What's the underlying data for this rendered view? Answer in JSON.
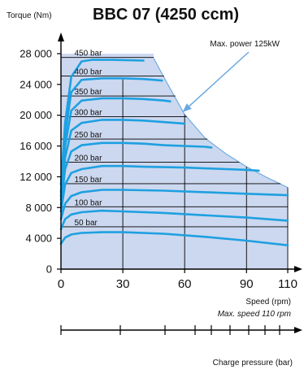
{
  "chart_data": {
    "type": "line",
    "title": "BBC 07 (4250 ccm)",
    "ylabel": "Torque (Nm)",
    "xlabel": "Speed (rpm)",
    "xlim": [
      0,
      110
    ],
    "ylim": [
      0,
      28000
    ],
    "x_ticks": [
      0,
      30,
      60,
      90,
      110
    ],
    "y_ticks": [
      0,
      4000,
      8000,
      12000,
      16000,
      20000,
      24000,
      28000
    ],
    "y_tick_labels": [
      "0",
      "4 000",
      "8 000",
      "12 000",
      "16 000",
      "20 000",
      "24 000",
      "28 000"
    ],
    "max_speed_label": "Max. speed 110 rpm",
    "annotation": {
      "text": "Max. power 125kW",
      "points_to": [
        59,
        20400
      ]
    },
    "power_limit_curve": {
      "x": [
        45,
        50,
        55,
        60,
        70,
        80,
        90,
        100,
        110
      ],
      "y": [
        27400,
        24900,
        22500,
        20100,
        17000,
        15000,
        13300,
        11900,
        10600
      ]
    },
    "series": [
      {
        "name": "450 bar",
        "x": [
          0,
          2,
          5,
          10,
          15,
          25,
          40
        ],
        "y": [
          11000,
          19000,
          25000,
          27000,
          27200,
          27200,
          27100
        ]
      },
      {
        "name": "400 bar",
        "x": [
          0,
          2,
          5,
          10,
          20,
          30,
          40,
          45,
          49
        ],
        "y": [
          10000,
          17500,
          23000,
          24600,
          24800,
          24800,
          24700,
          24600,
          24500
        ]
      },
      {
        "name": "350 bar",
        "x": [
          0,
          2,
          5,
          10,
          20,
          30,
          40,
          50,
          53
        ],
        "y": [
          9500,
          16000,
          20600,
          21900,
          22200,
          22200,
          22100,
          21900,
          21800
        ]
      },
      {
        "name": "300 bar",
        "x": [
          0,
          2,
          5,
          10,
          20,
          30,
          40,
          50,
          60
        ],
        "y": [
          9000,
          14500,
          18000,
          19000,
          19400,
          19400,
          19300,
          19100,
          18900
        ]
      },
      {
        "name": "250 bar",
        "x": [
          0,
          2,
          5,
          10,
          20,
          30,
          40,
          50,
          60,
          70,
          73
        ],
        "y": [
          8300,
          13000,
          15300,
          16100,
          16400,
          16400,
          16300,
          16100,
          16000,
          15900,
          15800
        ]
      },
      {
        "name": "200 bar",
        "x": [
          0,
          2,
          5,
          10,
          20,
          30,
          40,
          60,
          80,
          90,
          96
        ],
        "y": [
          7500,
          11000,
          12500,
          13000,
          13400,
          13400,
          13300,
          13200,
          13000,
          12900,
          12800
        ]
      },
      {
        "name": "150 bar",
        "x": [
          0,
          2,
          5,
          10,
          20,
          30,
          50,
          70,
          90,
          110
        ],
        "y": [
          6500,
          8500,
          9500,
          10000,
          10300,
          10300,
          10200,
          10000,
          9800,
          9600
        ]
      },
      {
        "name": "100 bar",
        "x": [
          0,
          2,
          5,
          10,
          20,
          30,
          50,
          70,
          90,
          110
        ],
        "y": [
          5200,
          6500,
          7100,
          7400,
          7600,
          7500,
          7300,
          7000,
          6700,
          6300
        ]
      },
      {
        "name": "50 bar",
        "x": [
          0,
          2,
          5,
          10,
          20,
          30,
          50,
          70,
          90,
          110
        ],
        "y": [
          3300,
          4100,
          4500,
          4700,
          4800,
          4800,
          4600,
          4200,
          3700,
          3100
        ]
      }
    ],
    "vertical_lines": [
      {
        "x": 30,
        "y_max": 24800
      },
      {
        "x": 60,
        "y_max": 20100
      },
      {
        "x": 90,
        "y_max": 13300
      },
      {
        "x": 110,
        "y_max": 10600
      }
    ],
    "grid": false,
    "legend": "inline"
  },
  "colors": {
    "fill": "#ccd8ef",
    "series": "#1ea0e1",
    "annotation": "#6aa8e0",
    "text": "#111111"
  },
  "bottom_axis_label": "Charge pressure (bar)"
}
